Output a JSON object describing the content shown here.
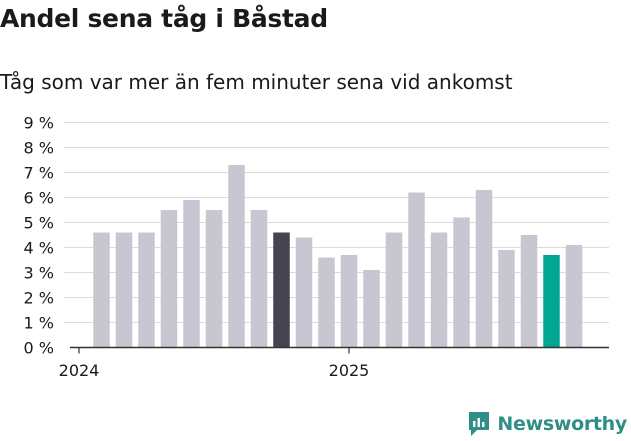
{
  "header": {
    "title": "Andel sena tåg i Båstad",
    "subtitle": "Tåg som var mer än fem minuter sena vid ankomst"
  },
  "brand": {
    "name": "Newsworthy",
    "icon": "newsworthy-logo-icon"
  },
  "colors": {
    "bar": "#c8c7d1",
    "highlight_dark": "#46424f",
    "highlight_accent": "#00a693",
    "grid": "#dcdcdc",
    "axis": "#333333",
    "brand": "#2f8f86"
  },
  "chart_data": {
    "type": "bar",
    "title": "Andel sena tåg i Båstad",
    "subtitle": "Tåg som var mer än fem minuter sena vid ankomst",
    "xlabel": "",
    "ylabel": "",
    "ylim": [
      0,
      9
    ],
    "yticks": [
      0,
      1,
      2,
      3,
      4,
      5,
      6,
      7,
      8,
      9
    ],
    "ytick_suffix": " %",
    "grid": true,
    "x_tick_labels": [
      {
        "label": "2024",
        "index": 0
      },
      {
        "label": "2025",
        "index": 12
      }
    ],
    "categories": [
      "2024-01",
      "2024-02",
      "2024-03",
      "2024-04",
      "2024-05",
      "2024-06",
      "2024-07",
      "2024-08",
      "2024-09",
      "2024-10",
      "2024-11",
      "2024-12",
      "2025-01",
      "2025-02",
      "2025-03",
      "2025-04",
      "2025-05",
      "2025-06",
      "2025-07",
      "2025-08",
      "2025-09",
      "2025-10",
      "2025-11",
      "2025-12"
    ],
    "values": [
      null,
      4.6,
      4.6,
      4.6,
      5.5,
      5.9,
      5.5,
      7.3,
      5.5,
      4.6,
      4.4,
      3.6,
      3.7,
      3.1,
      4.6,
      6.2,
      4.6,
      5.2,
      6.3,
      3.9,
      4.5,
      3.7,
      4.1,
      null
    ],
    "highlight": {
      "9": "dark",
      "21": "accent"
    }
  }
}
